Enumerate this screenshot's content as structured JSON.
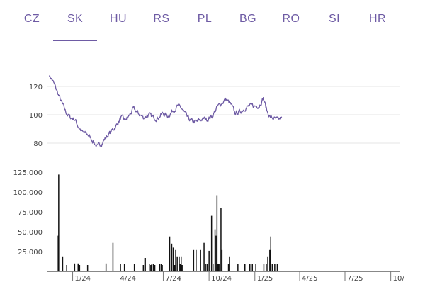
{
  "tabs": [
    {
      "label": "CZ"
    },
    {
      "label": "SK"
    },
    {
      "label": "HU"
    },
    {
      "label": "RS"
    },
    {
      "label": "PL"
    },
    {
      "label": "BG"
    },
    {
      "label": "RO"
    },
    {
      "label": "SI"
    },
    {
      "label": "HR"
    }
  ],
  "active_tab": "SK",
  "colors": {
    "accent": "#6e5ba4",
    "bar": "#111111",
    "grid": "#e6e6e6",
    "text": "#444444"
  },
  "chart_data": [
    {
      "type": "line",
      "title": "",
      "xlabel": "",
      "ylabel": "",
      "ylim": [
        70,
        135
      ],
      "yticks": [
        80,
        100,
        120
      ],
      "grid": true,
      "x_start": "2023-11-15",
      "x_end": "2025-03-05",
      "anchors": [
        [
          "2023-11-15",
          128
        ],
        [
          "2023-11-22",
          124
        ],
        [
          "2023-11-30",
          117
        ],
        [
          "2023-12-08",
          110
        ],
        [
          "2023-12-18",
          102
        ],
        [
          "2023-12-27",
          98
        ],
        [
          "2024-01-05",
          97
        ],
        [
          "2024-01-12",
          92
        ],
        [
          "2024-01-22",
          87
        ],
        [
          "2024-02-01",
          86
        ],
        [
          "2024-02-10",
          82
        ],
        [
          "2024-02-20",
          77
        ],
        [
          "2024-02-28",
          80
        ],
        [
          "2024-03-08",
          84
        ],
        [
          "2024-03-18",
          88
        ],
        [
          "2024-03-28",
          92
        ],
        [
          "2024-04-07",
          98
        ],
        [
          "2024-04-15",
          96
        ],
        [
          "2024-04-23",
          99
        ],
        [
          "2024-05-02",
          104
        ],
        [
          "2024-05-12",
          101
        ],
        [
          "2024-05-22",
          98
        ],
        [
          "2024-06-01",
          100
        ],
        [
          "2024-06-10",
          98
        ],
        [
          "2024-06-20",
          98
        ],
        [
          "2024-06-30",
          101
        ],
        [
          "2024-07-10",
          99
        ],
        [
          "2024-07-20",
          103
        ],
        [
          "2024-07-30",
          106
        ],
        [
          "2024-08-08",
          104
        ],
        [
          "2024-08-18",
          98
        ],
        [
          "2024-08-28",
          95
        ],
        [
          "2024-09-07",
          95
        ],
        [
          "2024-09-17",
          97
        ],
        [
          "2024-09-27",
          97
        ],
        [
          "2024-10-07",
          99
        ],
        [
          "2024-10-17",
          105
        ],
        [
          "2024-10-25",
          108
        ],
        [
          "2024-11-04",
          111
        ],
        [
          "2024-11-14",
          107
        ],
        [
          "2024-11-22",
          101
        ],
        [
          "2024-12-02",
          102
        ],
        [
          "2024-12-12",
          105
        ],
        [
          "2024-12-22",
          106
        ],
        [
          "2025-01-01",
          106
        ],
        [
          "2025-01-10",
          107
        ],
        [
          "2025-01-18",
          112
        ],
        [
          "2025-01-26",
          102
        ],
        [
          "2025-02-02",
          98
        ],
        [
          "2025-02-10",
          97
        ],
        [
          "2025-02-17",
          96
        ],
        [
          "2025-02-24",
          98
        ]
      ]
    },
    {
      "type": "bar",
      "title": "",
      "xlabel": "",
      "ylabel": "",
      "ylim": [
        0,
        125000
      ],
      "yticks": [
        25000,
        50000,
        75000,
        100000,
        125000
      ],
      "ytick_labels": [
        "25.000",
        "50.000",
        "75.000",
        "100.000",
        "125.000"
      ],
      "x_ticks": [
        {
          "date": "2024-01-01",
          "label": "1/24"
        },
        {
          "date": "2024-04-01",
          "label": "4/24"
        },
        {
          "date": "2024-07-01",
          "label": "7/24"
        },
        {
          "date": "2024-10-01",
          "label": "10/24"
        },
        {
          "date": "2025-01-01",
          "label": "1/25"
        },
        {
          "date": "2025-04-01",
          "label": "4/25"
        },
        {
          "date": "2025-07-01",
          "label": "7/25"
        },
        {
          "date": "2025-10-01",
          "label": "10/"
        }
      ],
      "x_range": [
        "2023-11-10",
        "2025-10-20"
      ],
      "bars": [
        [
          "2023-12-03",
          45000
        ],
        [
          "2023-12-04",
          122000
        ],
        [
          "2023-12-12",
          18000
        ],
        [
          "2023-12-20",
          8000
        ],
        [
          "2024-01-05",
          10000
        ],
        [
          "2024-01-12",
          10000
        ],
        [
          "2024-01-15",
          8000
        ],
        [
          "2024-01-31",
          8000
        ],
        [
          "2024-03-08",
          10000
        ],
        [
          "2024-03-22",
          36000
        ],
        [
          "2024-04-06",
          9000
        ],
        [
          "2024-04-14",
          9000
        ],
        [
          "2024-05-04",
          9000
        ],
        [
          "2024-05-22",
          8000
        ],
        [
          "2024-05-25",
          17000
        ],
        [
          "2024-05-26",
          17000
        ],
        [
          "2024-06-03",
          9000
        ],
        [
          "2024-06-06",
          8000
        ],
        [
          "2024-06-08",
          9000
        ],
        [
          "2024-06-11",
          9000
        ],
        [
          "2024-06-14",
          8000
        ],
        [
          "2024-06-24",
          9000
        ],
        [
          "2024-06-27",
          9000
        ],
        [
          "2024-06-29",
          8000
        ],
        [
          "2024-07-14",
          44000
        ],
        [
          "2024-07-18",
          35000
        ],
        [
          "2024-07-21",
          30000
        ],
        [
          "2024-07-24",
          8000
        ],
        [
          "2024-07-26",
          27000
        ],
        [
          "2024-07-29",
          18000
        ],
        [
          "2024-08-02",
          18000
        ],
        [
          "2024-08-04",
          9000
        ],
        [
          "2024-08-06",
          18000
        ],
        [
          "2024-08-08",
          8000
        ],
        [
          "2024-08-31",
          27000
        ],
        [
          "2024-09-05",
          27000
        ],
        [
          "2024-09-14",
          27000
        ],
        [
          "2024-09-21",
          36000
        ],
        [
          "2024-09-24",
          9000
        ],
        [
          "2024-09-27",
          9000
        ],
        [
          "2024-10-01",
          26000
        ],
        [
          "2024-10-06",
          70000
        ],
        [
          "2024-10-09",
          9000
        ],
        [
          "2024-10-13",
          53000
        ],
        [
          "2024-10-15",
          45000
        ],
        [
          "2024-10-17",
          96000
        ],
        [
          "2024-10-19",
          9000
        ],
        [
          "2024-10-21",
          9000
        ],
        [
          "2024-10-25",
          80000
        ],
        [
          "2024-10-27",
          27000
        ],
        [
          "2024-11-09",
          9000
        ],
        [
          "2024-11-11",
          18000
        ],
        [
          "2024-11-28",
          9000
        ],
        [
          "2024-12-12",
          9000
        ],
        [
          "2024-12-22",
          9000
        ],
        [
          "2024-12-27",
          9000
        ],
        [
          "2025-01-03",
          9000
        ],
        [
          "2025-01-19",
          9000
        ],
        [
          "2025-01-24",
          9000
        ],
        [
          "2025-01-27",
          18000
        ],
        [
          "2025-01-31",
          27000
        ],
        [
          "2025-02-02",
          44000
        ],
        [
          "2025-02-05",
          9000
        ],
        [
          "2025-02-10",
          9000
        ],
        [
          "2025-02-15",
          9000
        ]
      ]
    }
  ]
}
